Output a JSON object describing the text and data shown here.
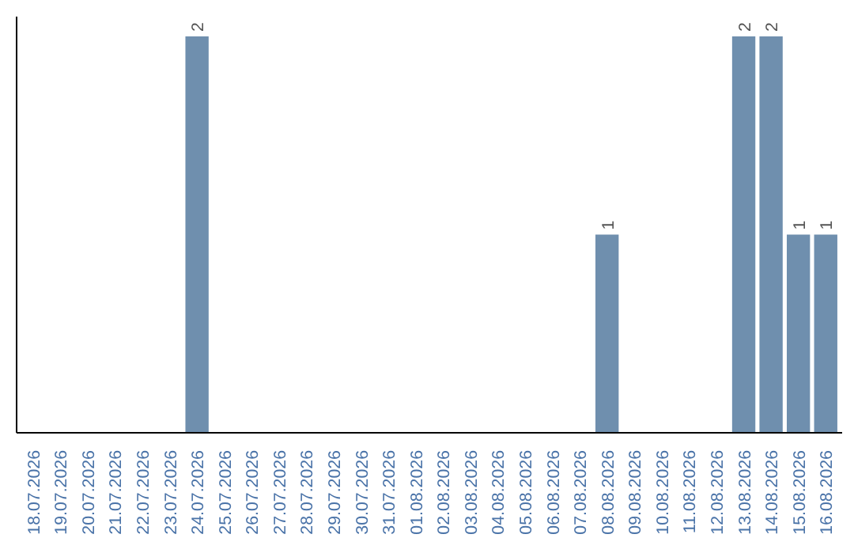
{
  "chart_data": {
    "type": "bar",
    "categories": [
      "18.07.2026",
      "19.07.2026",
      "20.07.2026",
      "21.07.2026",
      "22.07.2026",
      "23.07.2026",
      "24.07.2026",
      "25.07.2026",
      "26.07.2026",
      "27.07.2026",
      "28.07.2026",
      "29.07.2026",
      "30.07.2026",
      "31.07.2026",
      "01.08.2026",
      "02.08.2026",
      "03.08.2026",
      "04.08.2026",
      "05.08.2026",
      "06.08.2026",
      "07.08.2026",
      "08.08.2026",
      "09.08.2026",
      "10.08.2026",
      "11.08.2026",
      "12.08.2026",
      "13.08.2026",
      "14.08.2026",
      "15.08.2026",
      "16.08.2026"
    ],
    "values": [
      0,
      0,
      0,
      0,
      0,
      0,
      2,
      0,
      0,
      0,
      0,
      0,
      0,
      0,
      0,
      0,
      0,
      0,
      0,
      0,
      0,
      1,
      0,
      0,
      0,
      0,
      2,
      2,
      1,
      1
    ],
    "value_labels": [
      null,
      null,
      null,
      null,
      null,
      null,
      "2",
      null,
      null,
      null,
      null,
      null,
      null,
      null,
      null,
      null,
      null,
      null,
      null,
      null,
      null,
      "1",
      null,
      null,
      null,
      null,
      "2",
      "2",
      "1",
      "1"
    ],
    "color": "#6f8fae",
    "grid": false,
    "tick_labels": "x"
  }
}
